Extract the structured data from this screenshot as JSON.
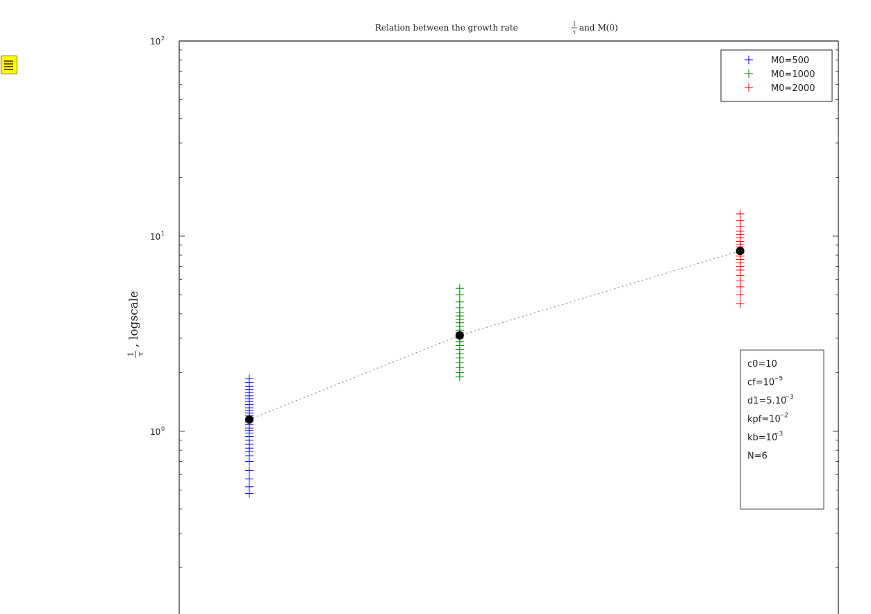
{
  "toolbar": {
    "icon": "list-icon"
  },
  "chart_data": {
    "type": "scatter",
    "title": "Relation between the growth rate",
    "title_frac": {
      "numerator": "1",
      "denominator": "τ"
    },
    "title_suffix": " and M(0)",
    "ylabel": ", logscale",
    "ylabel_frac": {
      "numerator": "1",
      "denominator": "τ"
    },
    "xlabel": "",
    "yscale": "log",
    "ylim": [
      0.1,
      100
    ],
    "xlim": [
      0,
      2350
    ],
    "y_ticks": [
      {
        "value": 100,
        "base": "10",
        "exp": "2"
      },
      {
        "value": 10,
        "base": "10",
        "exp": "1"
      },
      {
        "value": 1,
        "base": "10",
        "exp": "0"
      }
    ],
    "legend_position": "top-right",
    "series": [
      {
        "name": "M0=500",
        "color": "#0000ff",
        "x": 250,
        "values": [
          0.48,
          0.52,
          0.57,
          0.63,
          0.7,
          0.75,
          0.79,
          0.82,
          0.86,
          0.9,
          0.94,
          0.98,
          1.01,
          1.04,
          1.08,
          1.12,
          1.16,
          1.2,
          1.24,
          1.28,
          1.32,
          1.37,
          1.42,
          1.47,
          1.52,
          1.58,
          1.64,
          1.7,
          1.78,
          1.86
        ]
      },
      {
        "name": "M0=1000",
        "color": "#008000",
        "x": 1000,
        "values": [
          1.9,
          2.0,
          2.12,
          2.25,
          2.38,
          2.5,
          2.62,
          2.75,
          2.88,
          3.0,
          3.1,
          3.2,
          3.3,
          3.45,
          3.6,
          3.75,
          3.9,
          4.05,
          4.3,
          4.6,
          5.0,
          5.4
        ]
      },
      {
        "name": "M0=2000",
        "color": "#ff0000",
        "x": 2000,
        "values": [
          4.5,
          5.0,
          5.5,
          5.9,
          6.3,
          6.7,
          7.0,
          7.3,
          7.6,
          7.9,
          8.2,
          8.5,
          8.8,
          9.1,
          9.4,
          9.8,
          10.2,
          10.6,
          11.2,
          12.0,
          13.0
        ]
      }
    ],
    "mean_points": [
      {
        "x": 250,
        "y": 1.15
      },
      {
        "x": 1000,
        "y": 3.1
      },
      {
        "x": 2000,
        "y": 8.4
      }
    ],
    "annotation": [
      {
        "base": "c0=10",
        "exp": ""
      },
      {
        "base": "cf=10",
        "exp": "−5"
      },
      {
        "base": "d1=5.10",
        "exp": "−3"
      },
      {
        "base": "kpf=10",
        "exp": "−2"
      },
      {
        "base": "kb=10",
        "exp": "−3"
      },
      {
        "base": "N=6",
        "exp": ""
      }
    ]
  }
}
